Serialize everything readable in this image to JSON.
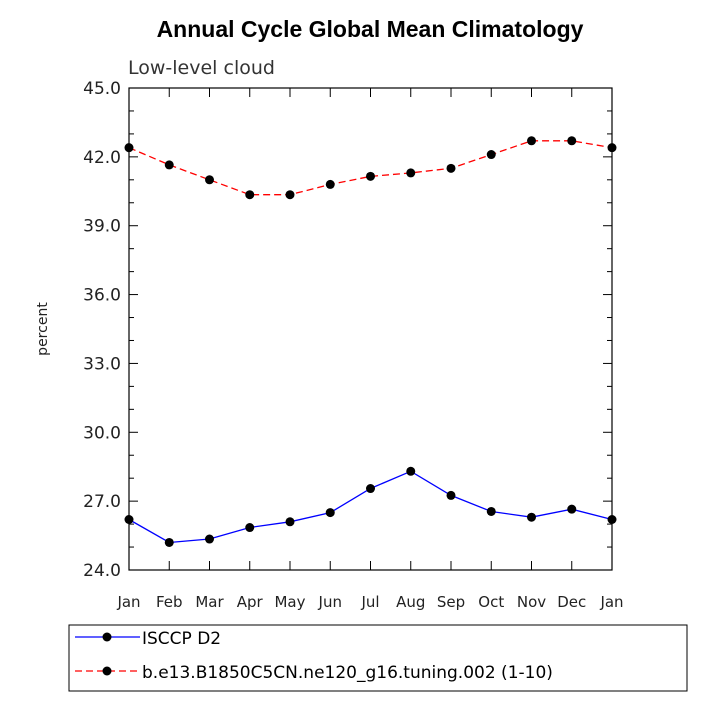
{
  "chart_data": {
    "type": "line",
    "title": "Annual Cycle Global Mean Climatology",
    "subtitle": "Low-level cloud",
    "ylabel": "percent",
    "xlabel": "",
    "ylim": [
      24.0,
      45.0
    ],
    "yticks": [
      "24.0",
      "27.0",
      "30.0",
      "33.0",
      "36.0",
      "39.0",
      "42.0",
      "45.0"
    ],
    "yticks_values": [
      24,
      27,
      30,
      33,
      36,
      39,
      42,
      45
    ],
    "categories": [
      "Jan",
      "Feb",
      "Mar",
      "Apr",
      "May",
      "Jun",
      "Jul",
      "Aug",
      "Sep",
      "Oct",
      "Nov",
      "Dec",
      "Jan"
    ],
    "grid": false,
    "legend_position": "bottom",
    "series": [
      {
        "name": "ISCCP D2",
        "color": "#0000ff",
        "style": "solid",
        "values": [
          26.2,
          25.2,
          25.35,
          25.85,
          26.1,
          26.5,
          27.55,
          28.3,
          27.25,
          26.55,
          26.3,
          26.65,
          26.2
        ]
      },
      {
        "name": "b.e13.B1850C5CN.ne120_g16.tuning.002 (1-10)",
        "color": "#ff0000",
        "style": "dashed",
        "values": [
          42.4,
          41.65,
          41.0,
          40.35,
          40.35,
          40.8,
          41.15,
          41.3,
          41.5,
          42.1,
          42.7,
          42.7,
          42.4
        ]
      }
    ]
  }
}
